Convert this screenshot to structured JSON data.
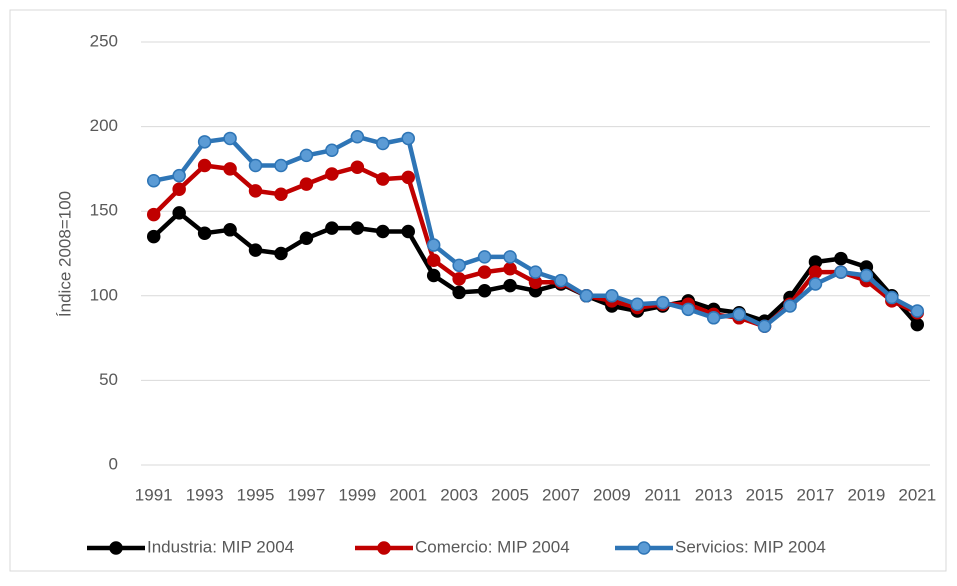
{
  "chart_data": {
    "type": "line",
    "y_label": "Índice 2008=100",
    "categories": [
      "1991",
      null,
      "1993",
      null,
      "1995",
      null,
      "1997",
      null,
      "1999",
      null,
      "2001",
      null,
      "2003",
      null,
      "2005",
      null,
      "2007",
      null,
      "2009",
      null,
      "2011",
      null,
      "2013",
      null,
      "2015",
      null,
      "2017",
      null,
      "2019",
      null,
      "2021"
    ],
    "series": [
      {
        "name": "Industria: MIP 2004",
        "color": "#000000",
        "values": [
          135,
          149,
          137,
          139,
          127,
          125,
          134,
          140,
          140,
          138,
          138,
          112,
          102,
          103,
          106,
          103,
          107,
          100,
          94,
          91,
          94,
          97,
          92,
          90,
          85,
          99,
          120,
          122,
          117,
          100,
          83
        ]
      },
      {
        "name": "Comercio: MIP 2004",
        "color": "#c00000",
        "values": [
          148,
          163,
          177,
          175,
          162,
          160,
          166,
          172,
          176,
          169,
          170,
          121,
          110,
          114,
          116,
          108,
          108,
          100,
          97,
          93,
          95,
          95,
          89,
          87,
          82,
          95,
          114,
          114,
          109,
          97,
          90
        ]
      },
      {
        "name": "Servicios: MIP 2004",
        "color": "#2e75b6",
        "values": [
          168,
          171,
          191,
          193,
          177,
          177,
          183,
          186,
          194,
          190,
          193,
          130,
          118,
          123,
          123,
          114,
          109,
          100,
          100,
          95,
          96,
          92,
          87,
          89,
          82,
          94,
          107,
          114,
          112,
          99,
          91
        ]
      }
    ],
    "ylim": [
      0,
      250
    ],
    "yticks": [
      0,
      50,
      100,
      150,
      200,
      250
    ],
    "grid": true,
    "legend": "bottom"
  }
}
